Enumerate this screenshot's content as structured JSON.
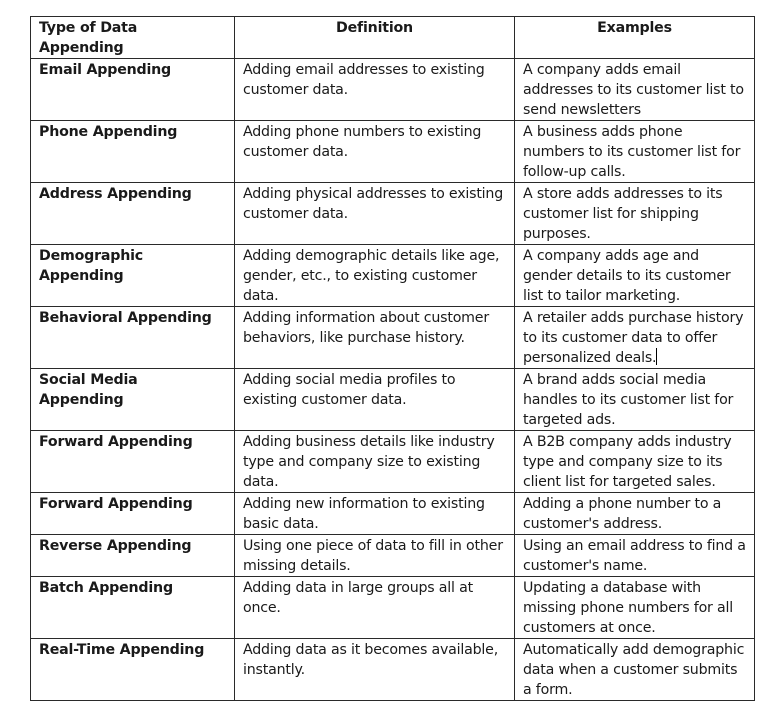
{
  "table": {
    "headers": [
      "Type of Data Appending",
      "Definition",
      "Examples"
    ],
    "rows": [
      {
        "type": "Email Appending",
        "definition": "Adding email addresses to existing customer data.",
        "example": "A company adds email addresses to its customer list to send newsletters",
        "h": 61
      },
      {
        "type": "Phone Appending",
        "definition": "Adding phone numbers to existing customer data.",
        "example": "A business adds phone numbers to its customer list for follow-up calls.",
        "h": 60
      },
      {
        "type": "Address Appending",
        "definition": "Adding physical addresses to existing customer data.",
        "example": "A store adds addresses to its customer list for shipping purposes.",
        "h": 61
      },
      {
        "type": "Demographic Appending",
        "definition": "Adding demographic details like age, gender, etc., to existing customer data.",
        "example": "A company adds age and gender details to its customer list to tailor marketing.",
        "h": 61
      },
      {
        "type": "Behavioral Appending",
        "definition": "Adding information about customer behaviors, like purchase history.",
        "example": "A retailer adds purchase history to its customer data to offer personalized deals.",
        "h": 60
      },
      {
        "type": "Social Media Appending",
        "definition": "Adding social media profiles to existing customer data.",
        "example": "A brand adds social media handles to its customer list for targeted ads.",
        "h": 61
      },
      {
        "type": "Forward Appending",
        "definition": "Adding business details like industry type and company size to existing data.",
        "example": "A B2B company adds industry type and company size to its client list for targeted sales.",
        "h": 60
      },
      {
        "type": "Forward Appending",
        "definition": "Adding new information to existing basic data.",
        "example": "Adding a phone number to a customer's address.",
        "h": 41
      },
      {
        "type": "Reverse Appending",
        "definition": "Using one piece of data to fill in other missing details.",
        "example": "Using an email address to find a customer's name.",
        "h": 41
      },
      {
        "type": "Batch Appending",
        "definition": "Adding data in large groups all at once.",
        "example": "Updating a database with missing phone numbers for all customers at once.",
        "h": 60
      },
      {
        "type": "Real-Time Appending",
        "definition": "Adding data as it becomes available, instantly.",
        "example": "Automatically add demographic data when a customer submits a form.",
        "h": 61
      }
    ]
  }
}
